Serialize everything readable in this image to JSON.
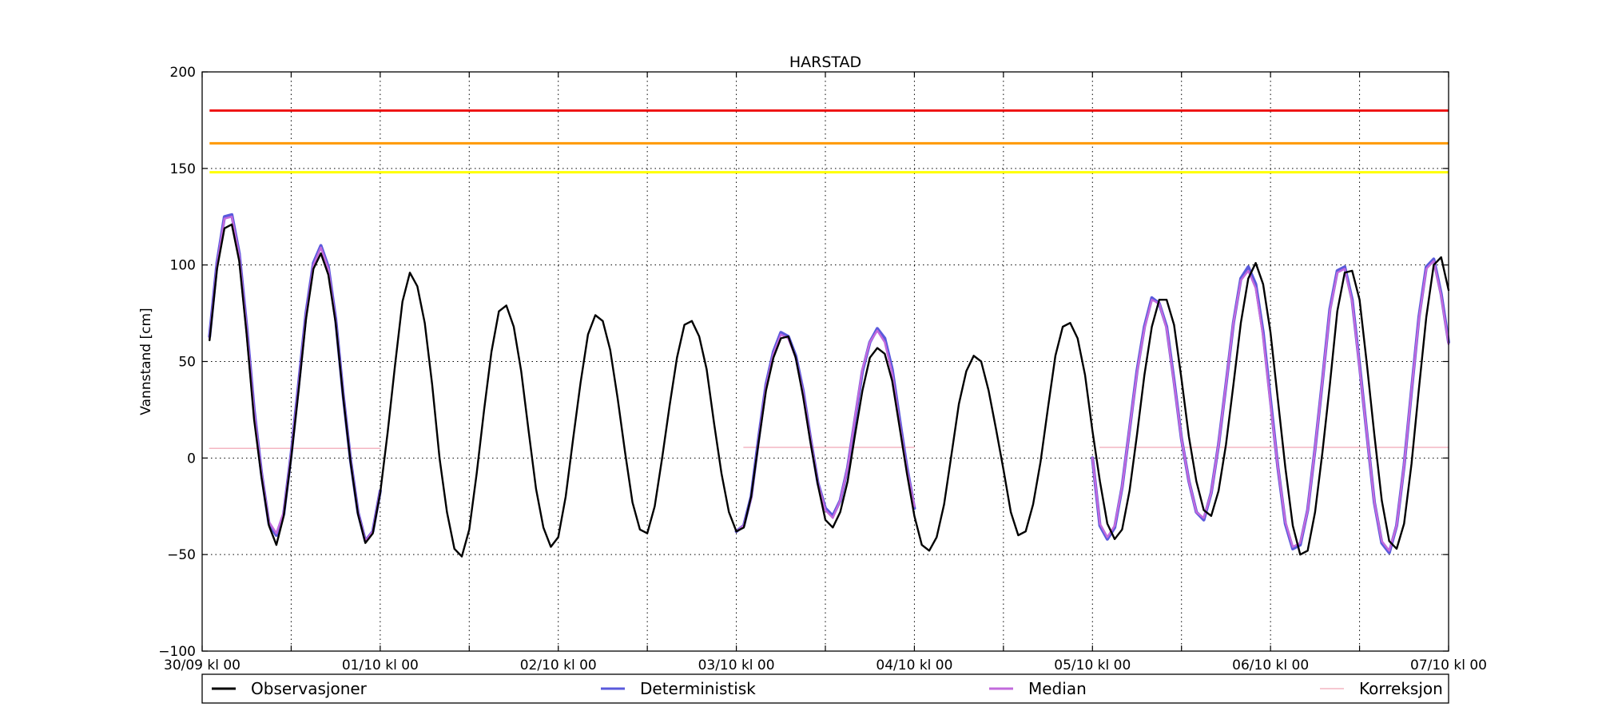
{
  "chart_data": {
    "type": "line",
    "title": "HARSTAD",
    "xlabel": "",
    "ylabel": "Vannstand [cm]",
    "ylim": [
      -100,
      200
    ],
    "yticks": [
      -100,
      -50,
      0,
      50,
      100,
      150,
      200
    ],
    "xlim": [
      0,
      168
    ],
    "xticks": [
      {
        "x": 0,
        "label": "30/09 kl 00"
      },
      {
        "x": 24,
        "label": "01/10 kl 00"
      },
      {
        "x": 48,
        "label": "02/10 kl 00"
      },
      {
        "x": 72,
        "label": "03/10 kl 00"
      },
      {
        "x": 96,
        "label": "04/10 kl 00"
      },
      {
        "x": 120,
        "label": "05/10 kl 00"
      },
      {
        "x": 144,
        "label": "06/10 kl 00"
      },
      {
        "x": 168,
        "label": "07/10 kl 00"
      }
    ],
    "x_minor_grid": [
      12,
      36,
      60,
      84,
      108,
      132,
      156
    ],
    "grid": true,
    "legend_position": "bottom",
    "thresholds": [
      {
        "y": 180,
        "color": "#ee1111"
      },
      {
        "y": 163,
        "color": "#ff9900"
      },
      {
        "y": 148,
        "color": "#ffff00"
      }
    ],
    "series": [
      {
        "name": "Observasjoner",
        "color": "#000000",
        "x": [
          1,
          2,
          3,
          4,
          5,
          6,
          7,
          8,
          9,
          10,
          11,
          12,
          13,
          14,
          15,
          16,
          17,
          18,
          19,
          20,
          21,
          22,
          23,
          24,
          25,
          26,
          27,
          28,
          29,
          30,
          31,
          32,
          33,
          34,
          35,
          36,
          37,
          38,
          39,
          40,
          41,
          42,
          43,
          44,
          45,
          46,
          47,
          48,
          49,
          50,
          51,
          52,
          53,
          54,
          55,
          56,
          57,
          58,
          59,
          60,
          61,
          62,
          63,
          64,
          65,
          66,
          67,
          68,
          69,
          70,
          71,
          72,
          73,
          74,
          75,
          76,
          77,
          78,
          79,
          80,
          81,
          82,
          83,
          84,
          85,
          86,
          87,
          88,
          89,
          90,
          91,
          92,
          93,
          94,
          95,
          96,
          97,
          98,
          99,
          100,
          101,
          102,
          103,
          104,
          105,
          106,
          107,
          108,
          109,
          110,
          111,
          112,
          113,
          114,
          115,
          116,
          117,
          118,
          119,
          120,
          121,
          122,
          123,
          124,
          125,
          126,
          127,
          128,
          129,
          130,
          131,
          132,
          133,
          134,
          135,
          136,
          137,
          138,
          139,
          140,
          141,
          142,
          143,
          144,
          145,
          146,
          147,
          148,
          149,
          150,
          151,
          152,
          153,
          154,
          155,
          156,
          157,
          158,
          159,
          160,
          161,
          162,
          163,
          164,
          165,
          166,
          167,
          168
        ],
        "y": [
          61,
          98,
          119,
          121,
          102,
          64,
          20,
          -10,
          -35,
          -45,
          -30,
          0,
          35,
          72,
          98,
          106,
          95,
          70,
          32,
          -2,
          -29,
          -44,
          -39,
          -18,
          13,
          48,
          81,
          96,
          89,
          70,
          38,
          0,
          -28,
          -47,
          -51,
          -37,
          -8,
          25,
          55,
          76,
          79,
          68,
          45,
          14,
          -16,
          -36,
          -46,
          -41,
          -20,
          10,
          39,
          64,
          74,
          71,
          56,
          31,
          3,
          -23,
          -37,
          -39,
          -25,
          0,
          27,
          52,
          69,
          71,
          63,
          46,
          18,
          -8,
          -28,
          -38,
          -36,
          -20,
          8,
          35,
          52,
          62,
          63,
          52,
          32,
          8,
          -14,
          -32,
          -36,
          -28,
          -12,
          12,
          35,
          52,
          57,
          54,
          40,
          16,
          -8,
          -30,
          -45,
          -48,
          -41,
          -24,
          2,
          28,
          45,
          53,
          50,
          35,
          15,
          -6,
          -28,
          -40,
          -38,
          -24,
          -2,
          26,
          53,
          68,
          70,
          62,
          43,
          14,
          -12,
          -34,
          -42,
          -37,
          -17,
          12,
          43,
          68,
          82,
          82,
          69,
          41,
          11,
          -12,
          -27,
          -30,
          -17,
          7,
          38,
          70,
          93,
          101,
          90,
          65,
          30,
          -5,
          -35,
          -50,
          -48,
          -28,
          3,
          38,
          76,
          96,
          97,
          82,
          48,
          12,
          -22,
          -43,
          -47,
          -34,
          -3,
          36,
          73,
          100,
          104,
          87
        ]
      },
      {
        "name": "Deterministisk",
        "color": "#5a5adc",
        "segments": [
          {
            "x": [
              1,
              2,
              3,
              4,
              5,
              6,
              7,
              8,
              9,
              10,
              11,
              12,
              13,
              14,
              15,
              16,
              17,
              18,
              19,
              20,
              21,
              22,
              23,
              24
            ],
            "y": [
              63,
              101,
              125,
              126,
              106,
              68,
              25,
              -8,
              -34,
              -40,
              -29,
              2,
              38,
              75,
              101,
              110,
              99,
              72,
              33,
              -1,
              -28,
              -43,
              -38,
              -17
            ]
          },
          {
            "x": [
              72,
              73,
              74,
              75,
              76,
              77,
              78,
              79,
              80,
              81,
              82,
              83,
              84,
              85,
              86,
              87,
              88,
              89,
              90,
              91,
              92,
              93,
              94,
              95,
              96
            ],
            "y": [
              -38,
              -35,
              -20,
              10,
              38,
              55,
              65,
              63,
              53,
              35,
              10,
              -13,
              -26,
              -30,
              -22,
              -5,
              20,
              45,
              60,
              67,
              62,
              46,
              20,
              -5,
              -26
            ]
          },
          {
            "x": [
              120,
              121,
              122,
              123,
              124,
              125,
              126,
              127,
              128,
              129,
              130,
              131,
              132,
              133,
              134,
              135,
              136,
              137,
              138,
              139,
              140,
              141,
              142,
              143,
              144,
              145,
              146,
              147,
              148,
              149,
              150,
              151,
              152,
              153,
              154,
              155,
              156,
              157,
              158,
              159,
              160,
              161,
              162,
              163,
              164,
              165,
              166,
              167,
              168
            ],
            "y": [
              0,
              -35,
              -42,
              -36,
              -15,
              15,
              45,
              68,
              83,
              80,
              68,
              40,
              10,
              -12,
              -28,
              -32,
              -18,
              7,
              38,
              70,
              93,
              99,
              90,
              65,
              30,
              -5,
              -34,
              -47,
              -45,
              -27,
              5,
              40,
              77,
              97,
              99,
              82,
              48,
              12,
              -23,
              -44,
              -49,
              -35,
              -4,
              35,
              73,
              99,
              103,
              85,
              60
            ]
          }
        ]
      },
      {
        "name": "Median",
        "color": "#c26adc",
        "segments": [
          {
            "x": [
              1,
              2,
              3,
              4,
              5,
              6,
              7,
              8,
              9,
              10,
              11,
              12,
              13,
              14,
              15,
              16,
              17,
              18,
              19,
              20,
              21,
              22,
              23,
              24
            ],
            "y": [
              62,
              100,
              124,
              125,
              105,
              67,
              24,
              -8,
              -33,
              -39,
              -28,
              2,
              37,
              74,
              100,
              109,
              98,
              71,
              33,
              -1,
              -28,
              -43,
              -38,
              -17
            ]
          },
          {
            "x": [
              72,
              73,
              74,
              75,
              76,
              77,
              78,
              79,
              80,
              81,
              82,
              83,
              84,
              85,
              86,
              87,
              88,
              89,
              90,
              91,
              92,
              93,
              94,
              95,
              96
            ],
            "y": [
              -38,
              -35,
              -21,
              9,
              37,
              54,
              64,
              62,
              52,
              34,
              10,
              -13,
              -27,
              -31,
              -22,
              -5,
              21,
              46,
              60,
              66,
              60,
              44,
              18,
              -6,
              -25
            ]
          },
          {
            "x": [
              120,
              121,
              122,
              123,
              124,
              125,
              126,
              127,
              128,
              129,
              130,
              131,
              132,
              133,
              134,
              135,
              136,
              137,
              138,
              139,
              140,
              141,
              142,
              143,
              144,
              145,
              146,
              147,
              148,
              149,
              150,
              151,
              152,
              153,
              154,
              155,
              156,
              157,
              158,
              159,
              160,
              161,
              162,
              163,
              164,
              165,
              166,
              167,
              168
            ],
            "y": [
              0,
              -34,
              -41,
              -35,
              -15,
              15,
              44,
              67,
              82,
              80,
              67,
              39,
              10,
              -12,
              -28,
              -31,
              -18,
              7,
              38,
              70,
              92,
              97,
              88,
              63,
              28,
              -5,
              -33,
              -46,
              -44,
              -27,
              5,
              40,
              76,
              96,
              98,
              81,
              47,
              12,
              -23,
              -43,
              -48,
              -35,
              -4,
              35,
              72,
              98,
              102,
              84,
              59
            ]
          }
        ]
      },
      {
        "name": "Korreksjon",
        "color": "#f4b6c2",
        "segments": [
          {
            "x": [
              1,
              24
            ],
            "y": [
              5,
              5
            ]
          },
          {
            "x": [
              73,
              96
            ],
            "y": [
              5.5,
              5.5
            ]
          },
          {
            "x": [
              121,
              168
            ],
            "y": [
              5.5,
              5.5
            ]
          }
        ]
      }
    ]
  }
}
